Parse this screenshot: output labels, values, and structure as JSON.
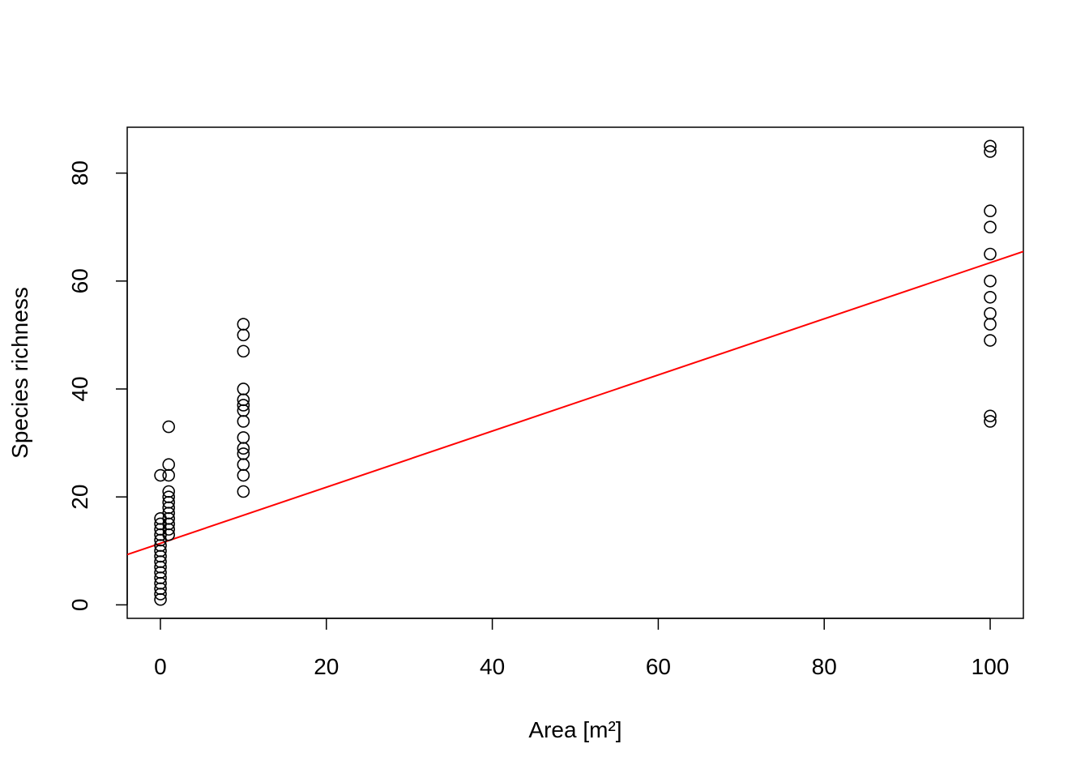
{
  "chart_data": {
    "type": "scatter",
    "title": "",
    "xlabel": "Area [m²]",
    "ylabel": "Species richness",
    "xlim": [
      -4,
      104
    ],
    "ylim": [
      -2.5,
      88.5
    ],
    "x_ticks": [
      0,
      20,
      40,
      60,
      80,
      100
    ],
    "y_ticks": [
      0,
      20,
      40,
      60,
      80
    ],
    "grid": false,
    "legend": "none",
    "point_color": "#000000",
    "line_color": "#ff0000",
    "series": [
      {
        "type": "scatter",
        "points": [
          [
            0.01,
            1
          ],
          [
            0.01,
            2
          ],
          [
            0.01,
            3
          ],
          [
            0.01,
            4
          ],
          [
            0.01,
            5
          ],
          [
            0.01,
            6
          ],
          [
            0.01,
            7
          ],
          [
            0.01,
            8
          ],
          [
            0.01,
            9
          ],
          [
            0.01,
            10
          ],
          [
            0.01,
            11
          ],
          [
            0.01,
            12
          ],
          [
            0.01,
            13
          ],
          [
            0.01,
            14
          ],
          [
            0.01,
            15
          ],
          [
            0.01,
            16
          ],
          [
            0.01,
            24
          ],
          [
            1,
            13
          ],
          [
            1,
            14
          ],
          [
            1,
            15
          ],
          [
            1,
            16
          ],
          [
            1,
            17
          ],
          [
            1,
            18
          ],
          [
            1,
            19
          ],
          [
            1,
            20
          ],
          [
            1,
            21
          ],
          [
            1,
            24
          ],
          [
            1,
            26
          ],
          [
            1,
            33
          ],
          [
            10,
            21
          ],
          [
            10,
            24
          ],
          [
            10,
            26
          ],
          [
            10,
            28
          ],
          [
            10,
            29
          ],
          [
            10,
            31
          ],
          [
            10,
            34
          ],
          [
            10,
            36
          ],
          [
            10,
            37
          ],
          [
            10,
            38
          ],
          [
            10,
            40
          ],
          [
            10,
            47
          ],
          [
            10,
            50
          ],
          [
            10,
            52
          ],
          [
            100,
            34
          ],
          [
            100,
            35
          ],
          [
            100,
            49
          ],
          [
            100,
            52
          ],
          [
            100,
            54
          ],
          [
            100,
            57
          ],
          [
            100,
            60
          ],
          [
            100,
            65
          ],
          [
            100,
            70
          ],
          [
            100,
            73
          ],
          [
            100,
            84
          ],
          [
            100,
            85
          ]
        ]
      },
      {
        "type": "line",
        "intercept": 11.4,
        "slope": 0.52
      }
    ]
  }
}
